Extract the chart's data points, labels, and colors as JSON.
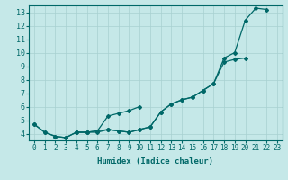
{
  "xlabel": "Humidex (Indice chaleur)",
  "background_color": "#c5e8e8",
  "line_color": "#006868",
  "x_values": [
    0,
    1,
    2,
    3,
    4,
    5,
    6,
    7,
    8,
    9,
    10,
    11,
    12,
    13,
    14,
    15,
    16,
    17,
    18,
    19,
    20,
    21,
    22,
    23
  ],
  "line1_y": [
    4.7,
    4.1,
    3.8,
    3.7,
    4.1,
    4.1,
    4.1,
    4.3,
    4.2,
    4.1,
    4.3,
    4.5,
    5.6,
    6.2,
    6.5,
    6.7,
    7.2,
    7.7,
    9.6,
    10.0,
    12.4,
    13.3,
    13.2,
    null
  ],
  "line2_y": [
    4.7,
    4.1,
    3.8,
    3.7,
    4.1,
    4.1,
    4.2,
    5.3,
    5.5,
    5.7,
    6.0,
    null,
    null,
    null,
    null,
    null,
    null,
    null,
    null,
    null,
    null,
    null,
    null,
    null
  ],
  "line3_y": [
    null,
    null,
    null,
    null,
    4.1,
    4.1,
    4.2,
    4.3,
    4.2,
    4.1,
    4.3,
    4.5,
    5.6,
    6.2,
    6.5,
    6.7,
    7.2,
    7.7,
    9.3,
    9.5,
    9.6,
    null,
    null,
    null
  ],
  "xlim": [
    -0.5,
    23.5
  ],
  "ylim": [
    3.5,
    13.5
  ],
  "yticks": [
    4,
    5,
    6,
    7,
    8,
    9,
    10,
    11,
    12,
    13
  ],
  "xticks": [
    0,
    1,
    2,
    3,
    4,
    5,
    6,
    7,
    8,
    9,
    10,
    11,
    12,
    13,
    14,
    15,
    16,
    17,
    18,
    19,
    20,
    21,
    22,
    23
  ],
  "tick_fontsize": 5.5,
  "xlabel_fontsize": 6.5,
  "grid_color": "#a8d0d0",
  "marker": "D",
  "markersize": 2.0,
  "linewidth": 0.9
}
